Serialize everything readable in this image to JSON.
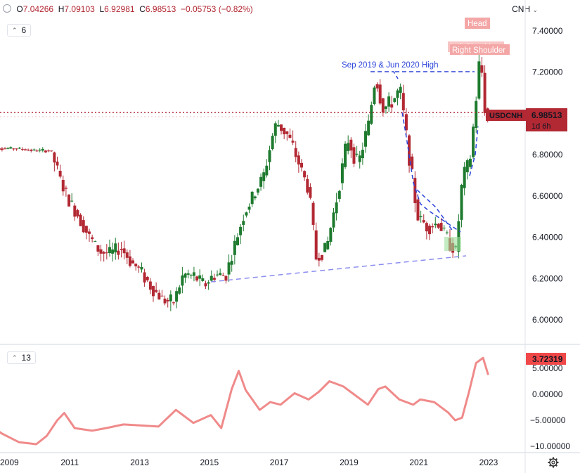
{
  "header": {
    "open_label": "O",
    "open": "7.04266",
    "high_label": "H",
    "high": "7.09103",
    "low_label": "L",
    "low": "6.92981",
    "close_label": "C",
    "close": "6.98513",
    "change": "−0.05753 (−0.82%)"
  },
  "currency_selector": {
    "label": "CNH"
  },
  "price_panel": {
    "indicator_count": "6"
  },
  "oscillator_panel": {
    "indicator_count": "13"
  },
  "price_axis": {
    "ticks": [
      "7.40000",
      "7.20000",
      "7.00000",
      "6.80000",
      "6.60000",
      "6.40000",
      "6.20000",
      "6.00000"
    ]
  },
  "osc_axis": {
    "ticks": [
      "5.00000",
      "0.00000",
      "−5.00000",
      "−10.00000"
    ]
  },
  "time_axis": {
    "ticks": [
      "2009",
      "2011",
      "2013",
      "2015",
      "2017",
      "2019",
      "2021",
      "2023"
    ]
  },
  "price_badge": {
    "symbol": "USDCNH",
    "price": "6.98513",
    "countdown": "1d 6h"
  },
  "osc_badge": {
    "value": "3.72319"
  },
  "annotations": {
    "high_line": "Sep 2019 & Jun 2020 High",
    "head": "Head",
    "left_shoulder": "Left Shoulder",
    "right_shoulder": "Right Shoulder"
  },
  "colors": {
    "up": "#1e7a2e",
    "down": "#b22833",
    "osc": "#f08a8a",
    "trend": "#2b44d8",
    "support": "#8b8df0"
  },
  "chart_data": [
    {
      "type": "line",
      "description_series": "USDCNH weekly close (approx.)",
      "x_years": [
        2008.6,
        2009.0,
        2009.5,
        2010.0,
        2010.5,
        2010.8,
        2011.0,
        2011.3,
        2011.6,
        2011.9,
        2012.2,
        2012.5,
        2012.8,
        2013.1,
        2013.4,
        2013.7,
        2014.0,
        2014.3,
        2014.6,
        2014.9,
        2015.2,
        2015.5,
        2015.8,
        2016.0,
        2016.3,
        2016.6,
        2016.9,
        2017.0,
        2017.3,
        2017.6,
        2017.9,
        2018.1,
        2018.4,
        2018.7,
        2019.0,
        2019.3,
        2019.6,
        2019.8,
        2020.0,
        2020.3,
        2020.5,
        2020.8,
        2021.0,
        2021.3,
        2021.6,
        2021.9,
        2022.1,
        2022.3,
        2022.5,
        2022.7,
        2022.8,
        2022.95
      ],
      "y": [
        6.84,
        6.83,
        6.83,
        6.82,
        6.82,
        6.66,
        6.58,
        6.5,
        6.4,
        6.33,
        6.32,
        6.35,
        6.28,
        6.23,
        6.15,
        6.1,
        6.08,
        6.22,
        6.21,
        6.17,
        6.22,
        6.21,
        6.38,
        6.5,
        6.6,
        6.7,
        6.93,
        6.95,
        6.89,
        6.76,
        6.62,
        6.3,
        6.35,
        6.6,
        6.88,
        6.75,
        6.95,
        7.18,
        7.02,
        7.06,
        7.12,
        6.75,
        6.5,
        6.45,
        6.47,
        6.38,
        6.33,
        6.7,
        6.76,
        7.1,
        7.3,
        6.99
      ],
      "ylim": [
        5.99,
        7.43
      ]
    },
    {
      "type": "line",
      "description_series": "oscillator (13)",
      "x_years": [
        2008.6,
        2009.0,
        2009.5,
        2010.0,
        2010.3,
        2010.6,
        2010.8,
        2011.1,
        2011.6,
        2012.0,
        2012.5,
        2013.0,
        2013.5,
        2014.0,
        2014.5,
        2015.0,
        2015.3,
        2015.6,
        2015.8,
        2016.0,
        2016.4,
        2016.7,
        2017.0,
        2017.4,
        2017.8,
        2018.1,
        2018.4,
        2018.8,
        2019.1,
        2019.5,
        2019.8,
        2020.0,
        2020.4,
        2020.8,
        2021.0,
        2021.4,
        2021.8,
        2022.0,
        2022.2,
        2022.4,
        2022.6,
        2022.8,
        2022.95
      ],
      "y": [
        -5.5,
        -7.5,
        -9.2,
        -9.6,
        -8.0,
        -5.0,
        -3.6,
        -6.5,
        -7.0,
        -6.5,
        -5.8,
        -6.0,
        -6.2,
        -3.0,
        -5.5,
        -4.0,
        -6.5,
        1.0,
        4.5,
        0.8,
        -3.0,
        -1.5,
        -2.0,
        0.2,
        -1.0,
        0.5,
        2.5,
        1.5,
        0.0,
        -2.0,
        1.0,
        1.5,
        -1.0,
        -2.0,
        -1.0,
        -1.5,
        -3.5,
        -5.0,
        -4.5,
        0.5,
        6.0,
        7.0,
        3.72
      ],
      "ylim": [
        -10.5,
        7.8
      ]
    }
  ]
}
